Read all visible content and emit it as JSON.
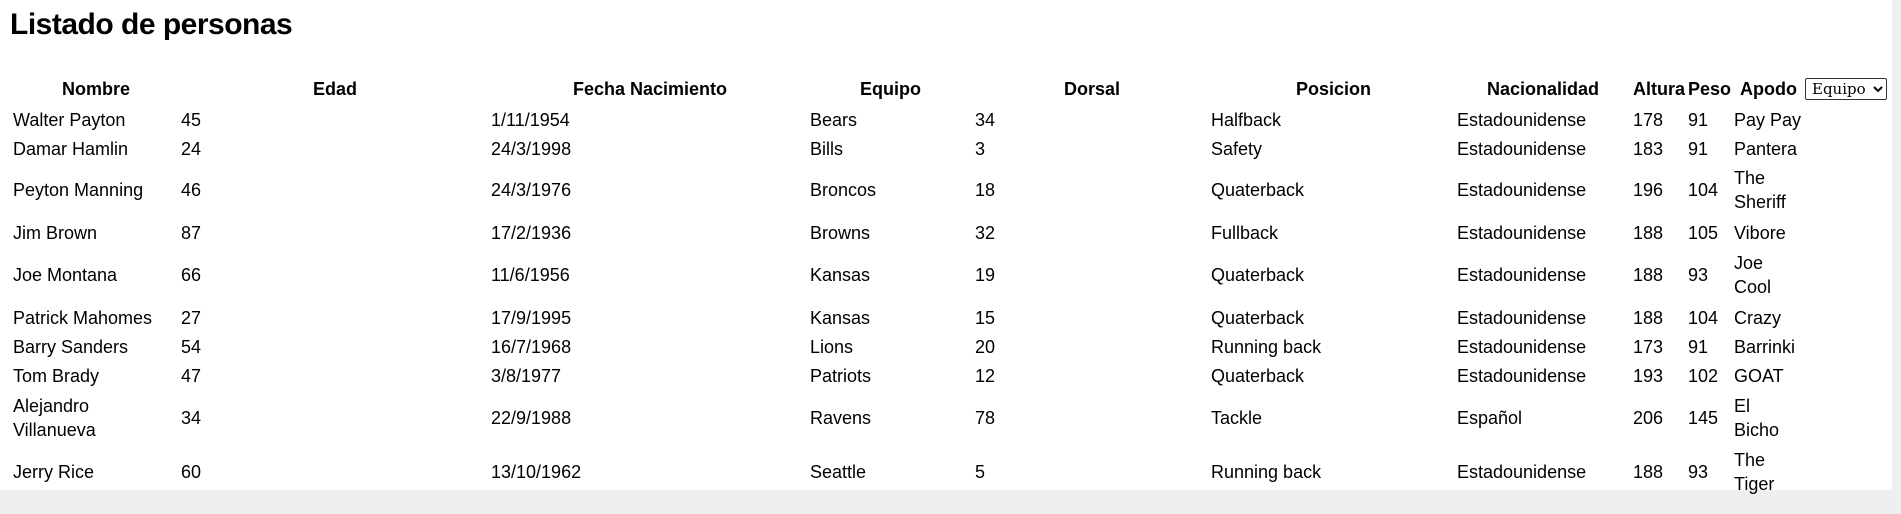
{
  "page": {
    "title": "Listado de personas"
  },
  "table": {
    "headers": {
      "nombre": "Nombre",
      "edad": "Edad",
      "fecha": "Fecha Nacimiento",
      "equipo": "Equipo",
      "dorsal": "Dorsal",
      "posicion": "Posicion",
      "nacionalidad": "Nacionalidad",
      "altura": "Altura",
      "peso": "Peso",
      "apodo": "Apodo"
    },
    "rows": [
      {
        "nombre": "Walter Payton",
        "edad": "45",
        "fecha": "1/11/1954",
        "equipo": "Bears",
        "dorsal": "34",
        "posicion": "Halfback",
        "nacionalidad": "Estadounidense",
        "altura": "178",
        "peso": "91",
        "apodo": "Pay Pay"
      },
      {
        "nombre": "Damar Hamlin",
        "edad": "24",
        "fecha": "24/3/1998",
        "equipo": "Bills",
        "dorsal": "3",
        "posicion": "Safety",
        "nacionalidad": "Estadounidense",
        "altura": "183",
        "peso": "91",
        "apodo": "Pantera"
      },
      {
        "nombre": "Peyton Manning",
        "edad": "46",
        "fecha": "24/3/1976",
        "equipo": "Broncos",
        "dorsal": "18",
        "posicion": "Quaterback",
        "nacionalidad": "Estadounidense",
        "altura": "196",
        "peso": "104",
        "apodo": "The Sheriff"
      },
      {
        "nombre": "Jim Brown",
        "edad": "87",
        "fecha": "17/2/1936",
        "equipo": "Browns",
        "dorsal": "32",
        "posicion": "Fullback",
        "nacionalidad": "Estadounidense",
        "altura": "188",
        "peso": "105",
        "apodo": "Vibore"
      },
      {
        "nombre": "Joe Montana",
        "edad": "66",
        "fecha": "11/6/1956",
        "equipo": "Kansas",
        "dorsal": "19",
        "posicion": "Quaterback",
        "nacionalidad": "Estadounidense",
        "altura": "188",
        "peso": "93",
        "apodo": "Joe Cool"
      },
      {
        "nombre": "Patrick Mahomes",
        "edad": "27",
        "fecha": "17/9/1995",
        "equipo": "Kansas",
        "dorsal": "15",
        "posicion": "Quaterback",
        "nacionalidad": "Estadounidense",
        "altura": "188",
        "peso": "104",
        "apodo": "Crazy"
      },
      {
        "nombre": "Barry Sanders",
        "edad": "54",
        "fecha": "16/7/1968",
        "equipo": "Lions",
        "dorsal": "20",
        "posicion": "Running back",
        "nacionalidad": "Estadounidense",
        "altura": "173",
        "peso": "91",
        "apodo": "Barrinki"
      },
      {
        "nombre": "Tom Brady",
        "edad": "47",
        "fecha": "3/8/1977",
        "equipo": "Patriots",
        "dorsal": "12",
        "posicion": "Quaterback",
        "nacionalidad": "Estadounidense",
        "altura": "193",
        "peso": "102",
        "apodo": "GOAT"
      },
      {
        "nombre": "Alejandro Villanueva",
        "edad": "34",
        "fecha": "22/9/1988",
        "equipo": "Ravens",
        "dorsal": "78",
        "posicion": "Tackle",
        "nacionalidad": "Español",
        "altura": "206",
        "peso": "145",
        "apodo": "El Bicho"
      },
      {
        "nombre": "Jerry Rice",
        "edad": "60",
        "fecha": "13/10/1962",
        "equipo": "Seattle",
        "dorsal": "5",
        "posicion": "Running back",
        "nacionalidad": "Estadounidense",
        "altura": "188",
        "peso": "93",
        "apodo": "The Tiger"
      }
    ]
  },
  "filter": {
    "selected": "Equipo",
    "options": [
      "Equipo"
    ]
  }
}
